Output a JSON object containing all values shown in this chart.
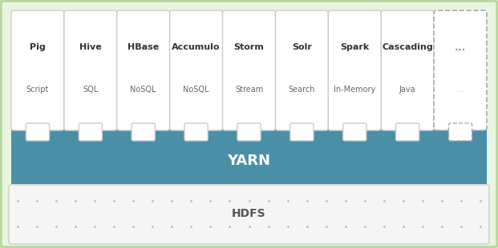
{
  "fig_width": 6.21,
  "fig_height": 3.1,
  "dpi": 100,
  "bg_outer": "#e8f5e0",
  "bg_inner_yarn": "#4a8fa8",
  "bg_inner_hdfs": "#f5f5f5",
  "yarn_text": "YARN",
  "hdfs_text": "HDFS",
  "yarn_text_color": "#ffffff",
  "hdfs_text_color": "#555555",
  "box_border_color": "#cccccc",
  "box_fill_color": "#ffffff",
  "apps": [
    {
      "name": "Pig",
      "sub": "Script"
    },
    {
      "name": "Hive",
      "sub": "SQL"
    },
    {
      "name": "HBase",
      "sub": "NoSQL"
    },
    {
      "name": "Accumulo",
      "sub": "NoSQL"
    },
    {
      "name": "Storm",
      "sub": "Stream"
    },
    {
      "name": "Solr",
      "sub": "Search"
    },
    {
      "name": "Spark",
      "sub": "In-Memory"
    },
    {
      "name": "Cascading",
      "sub": "Java"
    }
  ],
  "name_fontsize": 8.0,
  "sub_fontsize": 7.0,
  "yarn_fontsize": 13,
  "hdfs_fontsize": 10,
  "outer_border_color": "#b8d9a0",
  "dot_color": "#bbbbbb"
}
